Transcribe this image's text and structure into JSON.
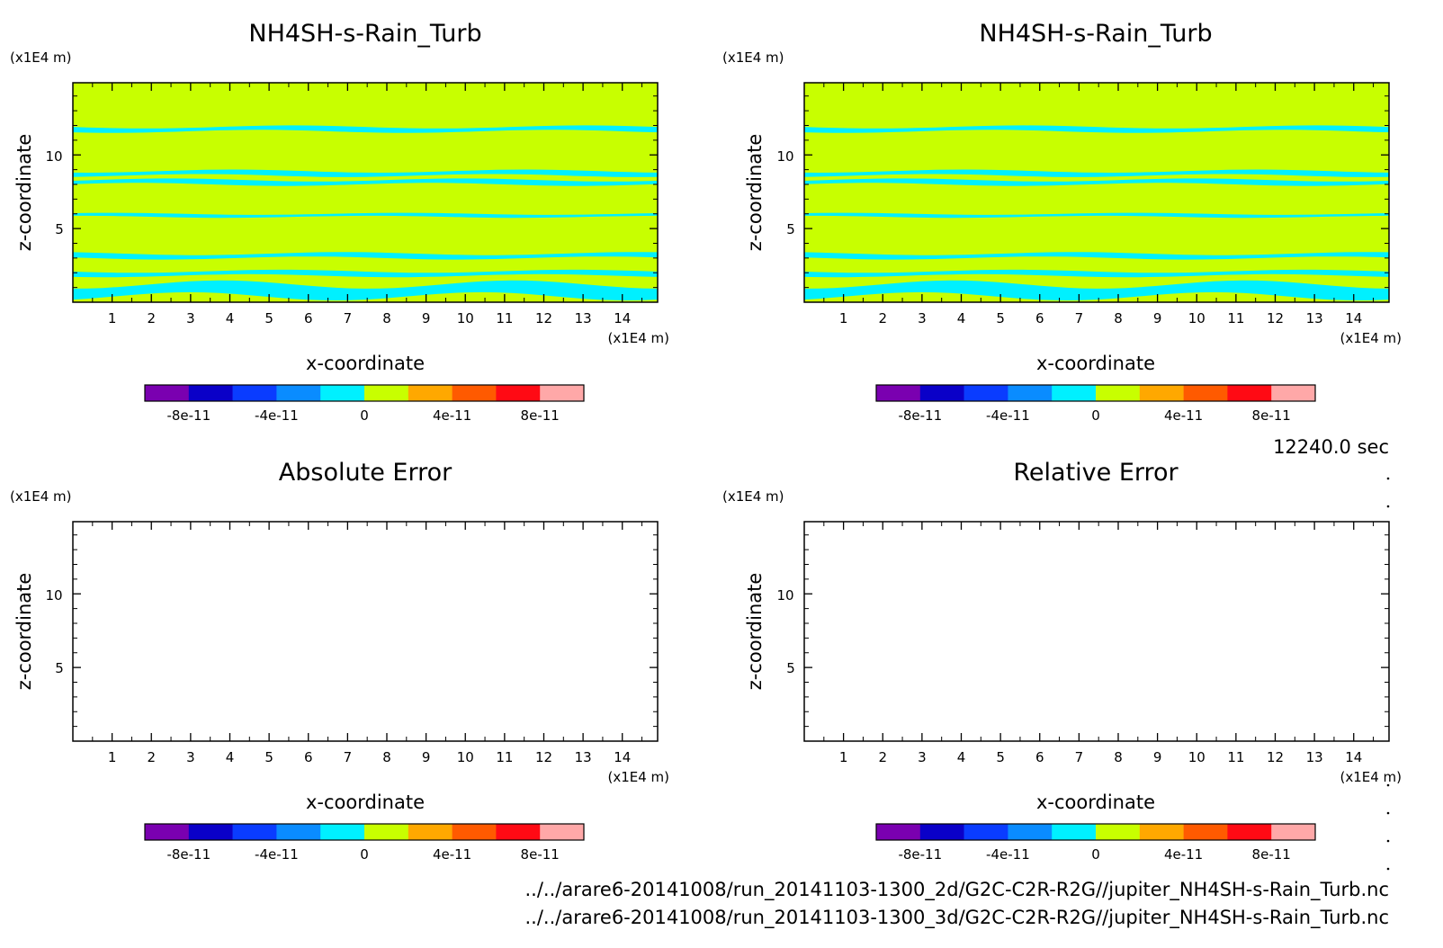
{
  "time_label": "12240.0 sec",
  "file_paths": [
    "../../arare6-20141008/run_20141103-1300_2d/G2C-C2R-R2G//jupiter_NH4SH-s-Rain_Turb.nc",
    "../../arare6-20141008/run_20141103-1300_3d/G2C-C2R-R2G//jupiter_NH4SH-s-Rain_Turb.nc"
  ],
  "colorbar": {
    "colors": [
      "#7a00b0",
      "#0a00c8",
      "#0a3cff",
      "#0a8cff",
      "#00f0ff",
      "#c8ff00",
      "#ffa800",
      "#ff5a00",
      "#ff0a14",
      "#ffa8a8"
    ],
    "ticks": [
      "-8e-11",
      "-4e-11",
      "0",
      "4e-11",
      "8e-11"
    ],
    "tick_values": [
      -8e-11,
      -4e-11,
      0,
      4e-11,
      8e-11
    ],
    "range": [
      -1e-10,
      1e-10
    ]
  },
  "chart_data": [
    {
      "type": "heatmap",
      "title": "NH4SH-s-Rain_Turb",
      "xlabel": "x-coordinate",
      "ylabel": "z-coordinate",
      "x_unit": "(x1E4 m)",
      "y_unit": "(x1E4 m)",
      "xlim": [
        0,
        14.9
      ],
      "ylim": [
        0,
        14.9
      ],
      "xticks": [
        "1",
        "2",
        "3",
        "4",
        "5",
        "6",
        "7",
        "8",
        "9",
        "10",
        "11",
        "12",
        "13",
        "14"
      ],
      "yticks": [
        "5",
        "10"
      ],
      "field": {
        "background": 0,
        "bands": [
          {
            "z": [
              11.6,
              11.9
            ],
            "value": -1e-11
          },
          {
            "z": [
              8.6,
              8.9
            ],
            "value": -1e-11
          },
          {
            "z": [
              8.0,
              8.3
            ],
            "value": -1e-11
          },
          {
            "z": [
              5.8,
              6.0
            ],
            "value": -1e-11
          },
          {
            "z": [
              3.0,
              3.3
            ],
            "value": -1e-11
          },
          {
            "z": [
              1.8,
              2.1
            ],
            "value": -1e-11
          },
          {
            "z": [
              0.4,
              1.2
            ],
            "value": -1e-11
          }
        ]
      }
    },
    {
      "type": "heatmap",
      "title": "NH4SH-s-Rain_Turb",
      "xlabel": "x-coordinate",
      "ylabel": "z-coordinate",
      "x_unit": "(x1E4 m)",
      "y_unit": "(x1E4 m)",
      "xlim": [
        0,
        14.9
      ],
      "ylim": [
        0,
        14.9
      ],
      "xticks": [
        "1",
        "2",
        "3",
        "4",
        "5",
        "6",
        "7",
        "8",
        "9",
        "10",
        "11",
        "12",
        "13",
        "14"
      ],
      "yticks": [
        "5",
        "10"
      ],
      "field": {
        "background": 0,
        "bands": [
          {
            "z": [
              11.6,
              11.9
            ],
            "value": -1e-11
          },
          {
            "z": [
              8.6,
              8.9
            ],
            "value": -1e-11
          },
          {
            "z": [
              8.0,
              8.3
            ],
            "value": -1e-11
          },
          {
            "z": [
              5.8,
              6.0
            ],
            "value": -1e-11
          },
          {
            "z": [
              3.0,
              3.3
            ],
            "value": -1e-11
          },
          {
            "z": [
              1.8,
              2.1
            ],
            "value": -1e-11
          },
          {
            "z": [
              0.4,
              1.2
            ],
            "value": -1e-11
          }
        ]
      }
    },
    {
      "type": "heatmap",
      "title": "Absolute Error",
      "xlabel": "x-coordinate",
      "ylabel": "z-coordinate",
      "x_unit": "(x1E4 m)",
      "y_unit": "(x1E4 m)",
      "xlim": [
        0,
        14.9
      ],
      "ylim": [
        0,
        14.9
      ],
      "xticks": [
        "1",
        "2",
        "3",
        "4",
        "5",
        "6",
        "7",
        "8",
        "9",
        "10",
        "11",
        "12",
        "13",
        "14"
      ],
      "yticks": [
        "5",
        "10"
      ],
      "field": null
    },
    {
      "type": "heatmap",
      "title": "Relative Error",
      "xlabel": "x-coordinate",
      "ylabel": "z-coordinate",
      "x_unit": "(x1E4 m)",
      "y_unit": "(x1E4 m)",
      "xlim": [
        0,
        14.9
      ],
      "ylim": [
        0,
        14.9
      ],
      "xticks": [
        "1",
        "2",
        "3",
        "4",
        "5",
        "6",
        "7",
        "8",
        "9",
        "10",
        "11",
        "12",
        "13",
        "14"
      ],
      "yticks": [
        "5",
        "10"
      ],
      "field": null
    }
  ]
}
